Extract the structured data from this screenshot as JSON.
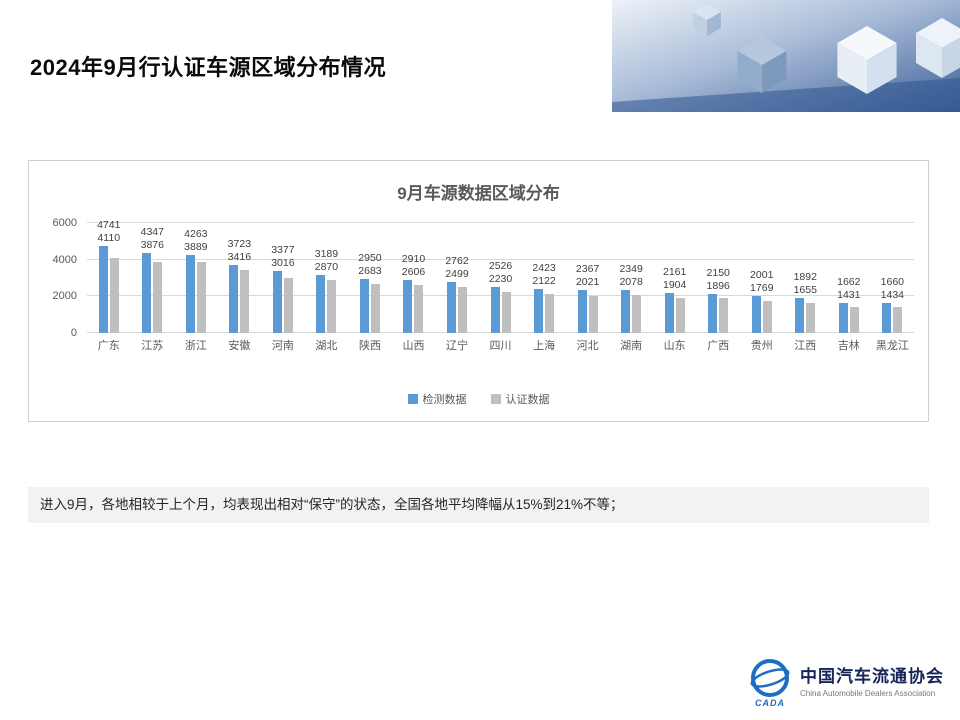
{
  "header": {
    "title": "2024年9月行认证车源区域分布情况"
  },
  "note": {
    "text": "进入9月，各地相较于上个月，均表现出相对“保守”的状态，全国各地平均降幅从15%到21%不等；"
  },
  "footer": {
    "logo_mark": "CADA",
    "org_cn": "中国汽车流通协会",
    "org_en": "China Automobile Dealers Association"
  },
  "chart_data": {
    "type": "bar",
    "title": "9月车源数据区域分布",
    "categories": [
      "广东",
      "江苏",
      "浙江",
      "安徽",
      "河南",
      "湖北",
      "陕西",
      "山西",
      "辽宁",
      "四川",
      "上海",
      "河北",
      "湖南",
      "山东",
      "广西",
      "贵州",
      "江西",
      "吉林",
      "黑龙江"
    ],
    "series": [
      {
        "name": "检测数据",
        "color": "#5B9BD5",
        "values": [
          4741,
          4347,
          4263,
          3723,
          3377,
          3189,
          2950,
          2910,
          2762,
          2526,
          2423,
          2367,
          2349,
          2161,
          2150,
          2001,
          1892,
          1662,
          1660
        ]
      },
      {
        "name": "认证数据",
        "color": "#BFBFBF",
        "values": [
          4110,
          3876,
          3889,
          3416,
          3016,
          2870,
          2683,
          2606,
          2499,
          2230,
          2122,
          2021,
          2078,
          1904,
          1896,
          1769,
          1655,
          1431,
          1434
        ]
      }
    ],
    "xlabel": "",
    "ylabel": "",
    "ylim": [
      0,
      6000
    ],
    "yticks": [
      0,
      2000,
      4000,
      6000
    ],
    "grid": true,
    "legend_position": "bottom"
  }
}
